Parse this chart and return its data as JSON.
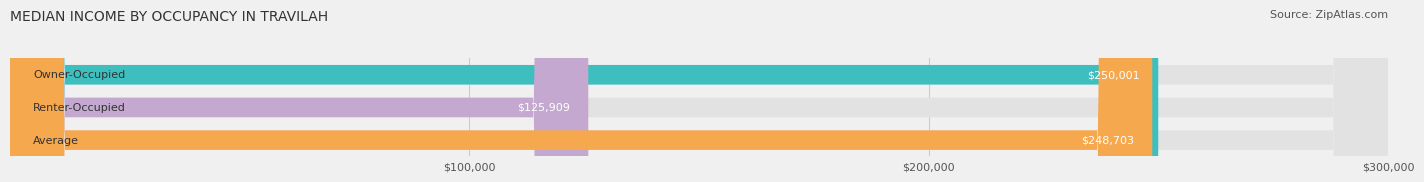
{
  "title": "MEDIAN INCOME BY OCCUPANCY IN TRAVILAH",
  "source": "Source: ZipAtlas.com",
  "categories": [
    "Owner-Occupied",
    "Renter-Occupied",
    "Average"
  ],
  "values": [
    250001,
    125909,
    248703
  ],
  "bar_colors": [
    "#3dbfbf",
    "#c4a8d0",
    "#f5a84e"
  ],
  "bar_labels": [
    "$250,001",
    "$125,909",
    "$248,703"
  ],
  "xlim": [
    0,
    300000
  ],
  "xticks": [
    100000,
    200000,
    300000
  ],
  "xtick_labels": [
    "$100,000",
    "$200,000",
    "$300,000"
  ],
  "title_fontsize": 10,
  "source_fontsize": 8,
  "label_fontsize": 8,
  "tick_fontsize": 8,
  "background_color": "#f0f0f0",
  "bar_background_color": "#e2e2e2",
  "bar_height": 0.6,
  "label_color_inside": "#ffffff",
  "category_label_color": "#333333"
}
